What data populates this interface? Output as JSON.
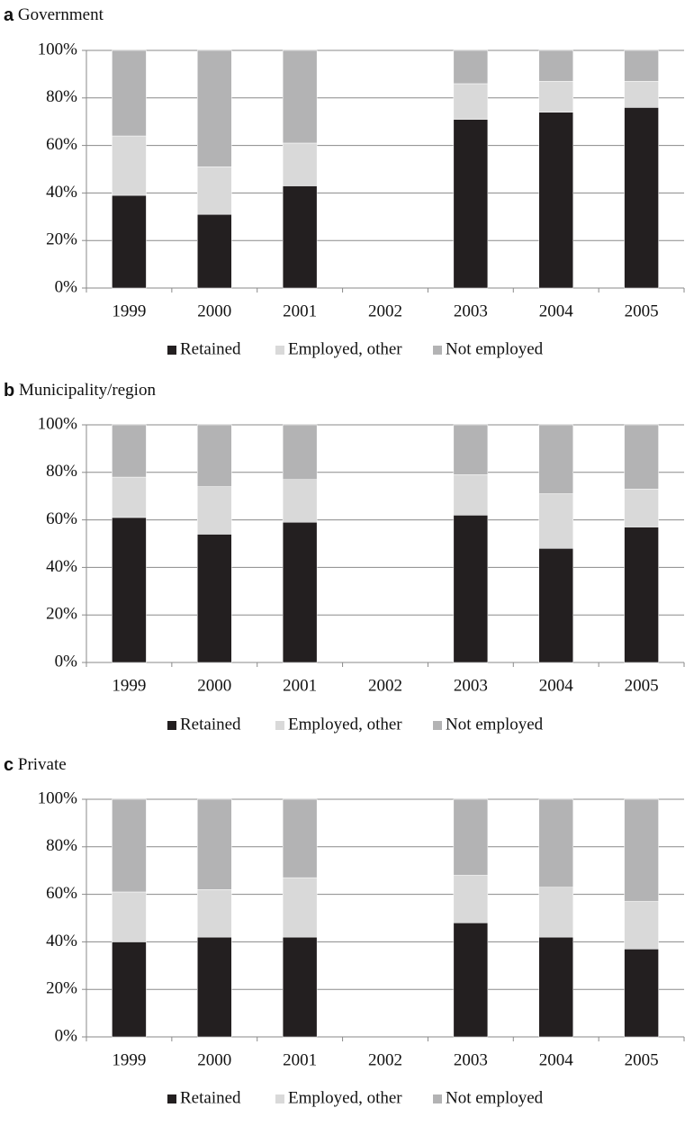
{
  "chart_data": [
    {
      "type": "bar",
      "stacked": true,
      "panel": "a",
      "title": "Government",
      "categories": [
        "1999",
        "2000",
        "2001",
        "2002",
        "2003",
        "2004",
        "2005"
      ],
      "series": [
        {
          "name": "Retained",
          "color": "#231f20",
          "values": [
            39,
            31,
            43,
            null,
            71,
            74,
            76
          ]
        },
        {
          "name": "Employed, other",
          "color": "#d9d9d9",
          "values": [
            25,
            20,
            18,
            null,
            15,
            13,
            11
          ]
        },
        {
          "name": "Not employed",
          "color": "#b3b3b4",
          "values": [
            36,
            49,
            39,
            null,
            14,
            13,
            13
          ]
        }
      ],
      "ylim": [
        0,
        100
      ],
      "yticks": [
        {
          "value": 0,
          "label": "0%"
        },
        {
          "value": 20,
          "label": "20%"
        },
        {
          "value": 40,
          "label": "40%"
        },
        {
          "value": 60,
          "label": "60%"
        },
        {
          "value": 80,
          "label": "80%"
        },
        {
          "value": 100,
          "label": "100%"
        }
      ],
      "grid": true,
      "legend": "bottom"
    },
    {
      "type": "bar",
      "stacked": true,
      "panel": "b",
      "title": "Municipality/region",
      "categories": [
        "1999",
        "2000",
        "2001",
        "2002",
        "2003",
        "2004",
        "2005"
      ],
      "series": [
        {
          "name": "Retained",
          "color": "#231f20",
          "values": [
            61,
            54,
            59,
            null,
            62,
            48,
            57
          ]
        },
        {
          "name": "Employed, other",
          "color": "#d9d9d9",
          "values": [
            17,
            20,
            18,
            null,
            17,
            23,
            16
          ]
        },
        {
          "name": "Not employed",
          "color": "#b3b3b4",
          "values": [
            22,
            26,
            23,
            null,
            21,
            29,
            27
          ]
        }
      ],
      "ylim": [
        0,
        100
      ],
      "yticks": [
        {
          "value": 0,
          "label": "0%"
        },
        {
          "value": 20,
          "label": "20%"
        },
        {
          "value": 40,
          "label": "40%"
        },
        {
          "value": 60,
          "label": "60%"
        },
        {
          "value": 80,
          "label": "80%"
        },
        {
          "value": 100,
          "label": "100%"
        }
      ],
      "grid": true,
      "legend": "bottom"
    },
    {
      "type": "bar",
      "stacked": true,
      "panel": "c",
      "title": "Private",
      "categories": [
        "1999",
        "2000",
        "2001",
        "2002",
        "2003",
        "2004",
        "2005"
      ],
      "series": [
        {
          "name": "Retained",
          "color": "#231f20",
          "values": [
            40,
            42,
            42,
            null,
            48,
            42,
            37
          ]
        },
        {
          "name": "Employed, other",
          "color": "#d9d9d9",
          "values": [
            21,
            20,
            25,
            null,
            20,
            21,
            20
          ]
        },
        {
          "name": "Not employed",
          "color": "#b3b3b4",
          "values": [
            39,
            38,
            33,
            null,
            32,
            37,
            43
          ]
        }
      ],
      "ylim": [
        0,
        100
      ],
      "yticks": [
        {
          "value": 0,
          "label": "0%"
        },
        {
          "value": 20,
          "label": "20%"
        },
        {
          "value": 40,
          "label": "40%"
        },
        {
          "value": 60,
          "label": "60%"
        },
        {
          "value": 80,
          "label": "80%"
        },
        {
          "value": 100,
          "label": "100%"
        }
      ],
      "grid": true,
      "legend": "bottom"
    }
  ]
}
